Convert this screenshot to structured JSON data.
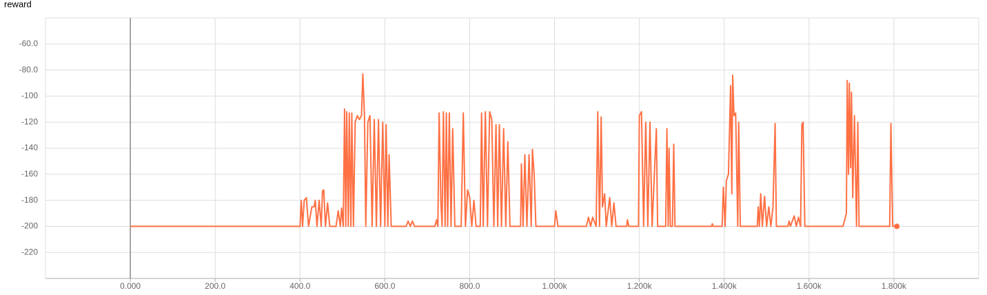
{
  "chart_data": {
    "type": "line",
    "title": "reward",
    "x": [
      0,
      400,
      403,
      406,
      410,
      415,
      420,
      428,
      433,
      436,
      440,
      445,
      450,
      453,
      456,
      460,
      465,
      470,
      485,
      490,
      495,
      498,
      502,
      505,
      508,
      510,
      514,
      516,
      520,
      522,
      526,
      530,
      535,
      540,
      545,
      548,
      552,
      555,
      560,
      565,
      570,
      575,
      580,
      585,
      590,
      595,
      600,
      603,
      607,
      610,
      615,
      650,
      655,
      660,
      665,
      670,
      718,
      722,
      725,
      728,
      732,
      735,
      738,
      742,
      745,
      748,
      752,
      756,
      760,
      765,
      780,
      785,
      790,
      795,
      800,
      805,
      810,
      815,
      825,
      828,
      832,
      837,
      842,
      847,
      852,
      857,
      862,
      866,
      870,
      875,
      880,
      885,
      890,
      895,
      920,
      922,
      926,
      930,
      935,
      940,
      945,
      948,
      952,
      956,
      1000,
      1003,
      1008,
      1075,
      1080,
      1085,
      1090,
      1098,
      1102,
      1106,
      1110,
      1113,
      1118,
      1122,
      1130,
      1135,
      1140,
      1145,
      1170,
      1172,
      1175,
      1198,
      1200,
      1205,
      1210,
      1215,
      1220,
      1225,
      1230,
      1240,
      1243,
      1262,
      1265,
      1268,
      1270,
      1273,
      1278,
      1281,
      1284,
      1370,
      1372,
      1374,
      1395,
      1398,
      1402,
      1405,
      1410,
      1415,
      1418,
      1420,
      1423,
      1427,
      1432,
      1434,
      1438,
      1478,
      1480,
      1483,
      1486,
      1490,
      1495,
      1500,
      1505,
      1510,
      1515,
      1520,
      1523,
      1550,
      1553,
      1556,
      1565,
      1570,
      1575,
      1580,
      1583,
      1586,
      1590,
      1680,
      1688,
      1690,
      1693,
      1695,
      1698,
      1700,
      1703,
      1707,
      1712,
      1715,
      1718,
      1790,
      1793,
      1797,
      1807
    ],
    "series": [
      {
        "color": "#ff7043",
        "values": [
          -200,
          -200,
          -180,
          -200,
          -180,
          -178,
          -200,
          -185,
          -185,
          -180,
          -200,
          -180,
          -200,
          -173,
          -172,
          -200,
          -182,
          -200,
          -200,
          -188,
          -200,
          -186,
          -200,
          -110,
          -200,
          -112,
          -200,
          -113,
          -200,
          -113,
          -200,
          -120,
          -115,
          -118,
          -115,
          -83,
          -115,
          -200,
          -120,
          -115,
          -200,
          -118,
          -200,
          -118,
          -200,
          -120,
          -200,
          -122,
          -200,
          -145,
          -200,
          -200,
          -196,
          -200,
          -196,
          -200,
          -200,
          -195,
          -200,
          -113,
          -180,
          -200,
          -112,
          -200,
          -113,
          -200,
          -113,
          -200,
          -125,
          -200,
          -200,
          -113,
          -200,
          -172,
          -178,
          -200,
          -180,
          -200,
          -200,
          -113,
          -200,
          -112,
          -200,
          -112,
          -118,
          -200,
          -122,
          -200,
          -122,
          -200,
          -125,
          -200,
          -135,
          -200,
          -200,
          -152,
          -200,
          -145,
          -200,
          -145,
          -200,
          -141,
          -160,
          -200,
          -200,
          -188,
          -200,
          -200,
          -193,
          -200,
          -193,
          -200,
          -112,
          -200,
          -116,
          -185,
          -175,
          -200,
          -178,
          -200,
          -182,
          -200,
          -200,
          -195,
          -200,
          -200,
          -115,
          -112,
          -200,
          -120,
          -200,
          -120,
          -200,
          -125,
          -200,
          -200,
          -125,
          -200,
          -140,
          -200,
          -200,
          -137,
          -200,
          -200,
          -198,
          -200,
          -200,
          -170,
          -200,
          -165,
          -160,
          -92,
          -175,
          -84,
          -115,
          -113,
          -200,
          -120,
          -200,
          -200,
          -185,
          -200,
          -175,
          -200,
          -177,
          -200,
          -185,
          -200,
          -185,
          -121,
          -200,
          -200,
          -196,
          -200,
          -192,
          -200,
          -193,
          -200,
          -122,
          -120,
          -200,
          -200,
          -190,
          -88,
          -160,
          -90,
          -155,
          -97,
          -178,
          -115,
          -200,
          -120,
          -200,
          -200,
          -121,
          -200,
          -200
        ]
      }
    ],
    "xlim": [
      -200,
      2000
    ],
    "xticks": [
      {
        "value": 0,
        "label": "0.000"
      },
      {
        "value": 200,
        "label": "200.0"
      },
      {
        "value": 400,
        "label": "400.0"
      },
      {
        "value": 600,
        "label": "600.0"
      },
      {
        "value": 800,
        "label": "800.0"
      },
      {
        "value": 1000,
        "label": "1.000k"
      },
      {
        "value": 1200,
        "label": "1.200k"
      },
      {
        "value": 1400,
        "label": "1.400k"
      },
      {
        "value": 1600,
        "label": "1.600k"
      },
      {
        "value": 1800,
        "label": "1.800k"
      }
    ],
    "ylim": [
      -240,
      -40
    ],
    "yticks": [
      -220,
      -200,
      -180,
      -160,
      -140,
      -120,
      -100,
      {
        "value": -80,
        "label": "-80.0"
      },
      {
        "value": -60,
        "label": "-60.0"
      }
    ],
    "grid": true
  }
}
